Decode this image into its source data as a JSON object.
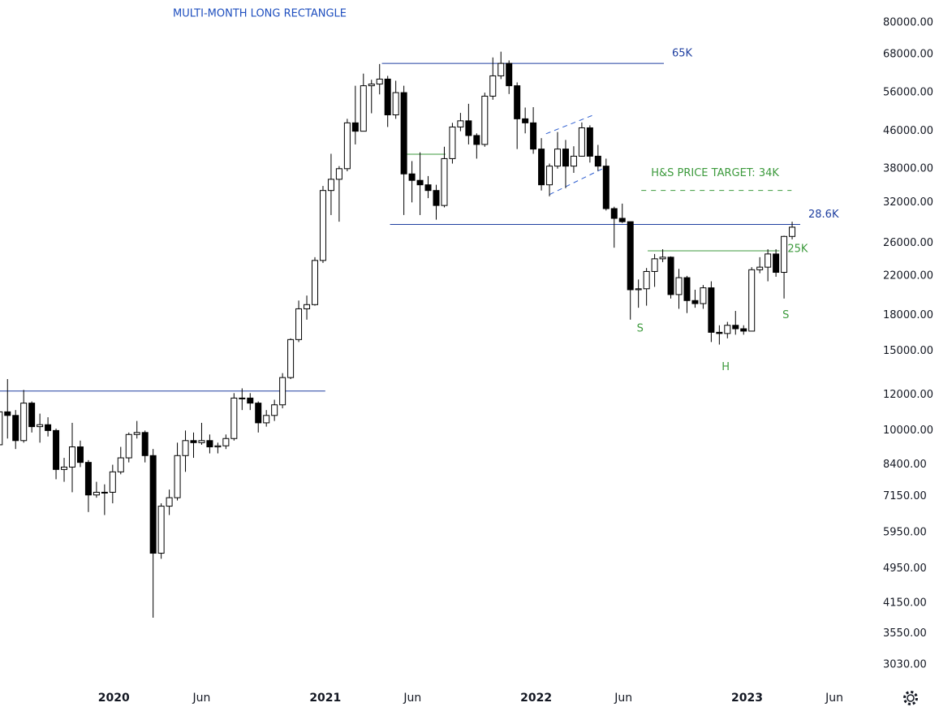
{
  "chart_data": {
    "type": "candlestick",
    "title": "MULTI-MONTH LONG RECTANGLE",
    "log_scale": true,
    "grid": false,
    "up_color": "#ffffff",
    "down_color": "#000000",
    "outline_color": "#000000",
    "x": [
      "2019-06-17",
      "2019-07-01",
      "2019-07-15",
      "2019-07-29",
      "2019-08-12",
      "2019-08-26",
      "2019-09-09",
      "2019-09-23",
      "2019-10-07",
      "2019-10-21",
      "2019-11-04",
      "2019-11-18",
      "2019-12-02",
      "2019-12-16",
      "2019-12-30",
      "2020-01-13",
      "2020-01-27",
      "2020-02-10",
      "2020-02-24",
      "2020-03-09",
      "2020-03-23",
      "2020-04-06",
      "2020-04-20",
      "2020-05-04",
      "2020-05-18",
      "2020-06-01",
      "2020-06-15",
      "2020-06-29",
      "2020-07-13",
      "2020-07-27",
      "2020-08-10",
      "2020-08-24",
      "2020-09-07",
      "2020-09-21",
      "2020-10-05",
      "2020-10-19",
      "2020-11-02",
      "2020-11-16",
      "2020-11-30",
      "2020-12-14",
      "2020-12-28",
      "2021-01-11",
      "2021-01-25",
      "2021-02-08",
      "2021-02-22",
      "2021-03-08",
      "2021-03-22",
      "2021-04-05",
      "2021-04-19",
      "2021-05-03",
      "2021-05-17",
      "2021-05-31",
      "2021-06-14",
      "2021-06-28",
      "2021-07-12",
      "2021-07-26",
      "2021-08-09",
      "2021-08-23",
      "2021-09-06",
      "2021-09-20",
      "2021-10-04",
      "2021-10-18",
      "2021-11-01",
      "2021-11-15",
      "2021-11-29",
      "2021-12-13",
      "2021-12-27",
      "2022-01-10",
      "2022-01-24",
      "2022-02-07",
      "2022-02-21",
      "2022-03-07",
      "2022-03-21",
      "2022-04-04",
      "2022-04-18",
      "2022-05-02",
      "2022-05-16",
      "2022-05-30",
      "2022-06-13",
      "2022-06-27",
      "2022-07-11",
      "2022-07-25",
      "2022-08-08",
      "2022-08-22",
      "2022-09-05",
      "2022-09-19",
      "2022-10-03",
      "2022-10-17",
      "2022-10-31",
      "2022-11-14",
      "2022-11-28",
      "2022-12-12",
      "2022-12-26",
      "2023-01-09",
      "2023-01-23",
      "2023-02-06",
      "2023-02-20",
      "2023-03-06",
      "2023-03-20"
    ],
    "open": [
      9300,
      11000,
      10800,
      9500,
      11500,
      10200,
      10300,
      10000,
      8200,
      8300,
      9200,
      8500,
      7200,
      7300,
      7300,
      8100,
      8700,
      9800,
      9900,
      8800,
      5350,
      6800,
      7100,
      8800,
      9500,
      9400,
      9500,
      9200,
      9250,
      9600,
      11800,
      11800,
      11500,
      10400,
      10800,
      11400,
      13100,
      15900,
      18600,
      19000,
      23800,
      34000,
      36000,
      38000,
      48000,
      46000,
      58000,
      58500,
      60000,
      50000,
      56000,
      37000,
      35800,
      35000,
      34000,
      31500,
      40000,
      47000,
      48500,
      45000,
      43000,
      55000,
      61000,
      65000,
      58000,
      49000,
      48000,
      42000,
      35000,
      38500,
      42000,
      38500,
      40500,
      46800,
      40500,
      38500,
      31000,
      29500,
      29000,
      20500,
      20600,
      22500,
      24000,
      24200,
      20000,
      21800,
      19400,
      19100,
      20700,
      16500,
      16400,
      17100,
      16800,
      16600,
      22700,
      23000,
      24600,
      22400,
      26900
    ],
    "high": [
      13800,
      13000,
      11100,
      12300,
      11600,
      10900,
      10700,
      10100,
      8700,
      10400,
      9500,
      8600,
      7700,
      7600,
      8400,
      9200,
      9900,
      10500,
      10000,
      9100,
      6900,
      7400,
      9400,
      10000,
      9900,
      10400,
      9800,
      9400,
      9800,
      12100,
      12400,
      12100,
      11600,
      11100,
      11700,
      13400,
      16000,
      19400,
      19900,
      24200,
      34800,
      41000,
      38500,
      49000,
      58000,
      61700,
      59800,
      64800,
      61000,
      59500,
      58000,
      39500,
      41300,
      36600,
      35000,
      42500,
      48000,
      50500,
      52900,
      45500,
      56000,
      67000,
      69000,
      66000,
      59000,
      51900,
      52000,
      44400,
      39000,
      45800,
      44000,
      42600,
      48100,
      47400,
      42900,
      40000,
      31300,
      31800,
      29000,
      21600,
      22900,
      24600,
      25200,
      24300,
      22800,
      22000,
      20500,
      21000,
      21400,
      17100,
      17400,
      18400,
      17100,
      23000,
      24200,
      25200,
      25200,
      27000,
      29000
    ],
    "low": [
      9000,
      9600,
      9100,
      9400,
      9900,
      9400,
      9700,
      7800,
      7700,
      7300,
      8300,
      6600,
      7100,
      6500,
      6900,
      8000,
      8500,
      9600,
      8500,
      3850,
      5200,
      6500,
      7000,
      8100,
      8700,
      9300,
      8900,
      8900,
      9100,
      9500,
      11100,
      11100,
      9900,
      10200,
      10500,
      11200,
      13000,
      15700,
      17600,
      18900,
      23500,
      30000,
      29000,
      37500,
      43000,
      46000,
      50400,
      55500,
      47000,
      49000,
      30000,
      32000,
      30000,
      32700,
      29300,
      31200,
      39000,
      46000,
      43000,
      40000,
      42500,
      54000,
      60000,
      55600,
      42000,
      45500,
      41000,
      34000,
      33000,
      38000,
      34400,
      37200,
      40400,
      39200,
      37600,
      30700,
      25400,
      28800,
      17600,
      18700,
      18900,
      20800,
      23600,
      19600,
      18600,
      18200,
      18700,
      18600,
      15700,
      15500,
      16000,
      16300,
      16300,
      16600,
      22300,
      21400,
      21900,
      19600,
      26500
    ],
    "close": [
      11000,
      10800,
      9500,
      11500,
      10200,
      10300,
      10000,
      8200,
      8300,
      9200,
      8500,
      7200,
      7300,
      7300,
      8100,
      8700,
      9800,
      9900,
      8800,
      5350,
      6800,
      7100,
      8800,
      9500,
      9400,
      9500,
      9200,
      9250,
      9600,
      11800,
      11800,
      11500,
      10400,
      10800,
      11400,
      13100,
      15900,
      18600,
      19000,
      23800,
      34000,
      36000,
      38000,
      48000,
      46000,
      58000,
      58500,
      60000,
      50000,
      56000,
      37000,
      35800,
      35000,
      34000,
      31500,
      40000,
      47000,
      48500,
      45000,
      43000,
      55000,
      61000,
      65000,
      58000,
      49000,
      48000,
      42000,
      35000,
      38500,
      42000,
      38500,
      40500,
      46800,
      40500,
      38500,
      31000,
      29500,
      29000,
      20500,
      20600,
      22500,
      24000,
      24200,
      20000,
      21800,
      19400,
      19100,
      20700,
      16500,
      16400,
      17100,
      16800,
      16600,
      22700,
      23000,
      24600,
      22400,
      26900,
      28200
    ],
    "xlim": [
      "2019-06-18",
      "2023-08-06"
    ],
    "xticks": [
      {
        "value": "2020-01-01",
        "label": "2020"
      },
      {
        "value": "2020-06-01",
        "label": "Jun"
      },
      {
        "value": "2021-01-01",
        "label": "2021"
      },
      {
        "value": "2021-06-01",
        "label": "Jun"
      },
      {
        "value": "2022-01-01",
        "label": "2022"
      },
      {
        "value": "2022-06-01",
        "label": "Jun"
      },
      {
        "value": "2023-01-01",
        "label": "2023"
      },
      {
        "value": "2023-06-01",
        "label": "Jun"
      }
    ],
    "ylim": [
      2720,
      89800
    ],
    "yticks": [
      {
        "value": 80000,
        "label": "80000.00"
      },
      {
        "value": 68000,
        "label": "68000.00"
      },
      {
        "value": 56000,
        "label": "56000.00"
      },
      {
        "value": 46000,
        "label": "46000.00"
      },
      {
        "value": 38000,
        "label": "38000.00"
      },
      {
        "value": 32000,
        "label": "32000.00"
      },
      {
        "value": 26000,
        "label": "26000.00"
      },
      {
        "value": 22000,
        "label": "22000.00"
      },
      {
        "value": 18000,
        "label": "18000.00"
      },
      {
        "value": 15000,
        "label": "15000.00"
      },
      {
        "value": 12000,
        "label": "12000.00"
      },
      {
        "value": 10000,
        "label": "10000.00"
      },
      {
        "value": 8400,
        "label": "8400.00"
      },
      {
        "value": 7150,
        "label": "7150.00"
      },
      {
        "value": 5950,
        "label": "5950.00"
      },
      {
        "value": 4950,
        "label": "4950.00"
      },
      {
        "value": 4150,
        "label": "4150.00"
      },
      {
        "value": 3550,
        "label": "3550.00"
      },
      {
        "value": 3030,
        "label": "3030.00"
      }
    ],
    "hlines": [
      {
        "value": 65000,
        "from": "2021-04-09",
        "to": "2022-08-10",
        "label": "65K",
        "color": "#1f3fa0"
      },
      {
        "value": 28600,
        "from": "2021-04-23",
        "to": "2023-04-03",
        "label": "28.6K",
        "color": "#1f3fa0"
      },
      {
        "value": 12230,
        "from": "2019-06-18",
        "to": "2021-01-01",
        "color": "#1f3fa0"
      },
      {
        "value": 25000,
        "from": "2022-07-13",
        "to": "2023-02-26",
        "label": "25K",
        "color": "#3c9a3c"
      },
      {
        "value": 34000,
        "from": "2022-07-02",
        "to": "2023-03-19",
        "label": "H&S PRICE TARGET: 34K",
        "color": "#3c9a3c",
        "dashed": true
      },
      {
        "value": 40900,
        "from": "2021-05-21",
        "to": "2021-07-28",
        "color": "#3c9a3c"
      }
    ],
    "trendlines": [
      {
        "points": [
          [
            "2022-01-18",
            45400
          ],
          [
            "2022-04-09",
            49900
          ]
        ],
        "color": "#2f5fd0",
        "dashed": true
      },
      {
        "points": [
          [
            "2022-01-24",
            33300
          ],
          [
            "2022-04-26",
            38000
          ]
        ],
        "color": "#2f5fd0",
        "dashed": true
      }
    ],
    "annotations": [
      {
        "text": "S",
        "x": "2022-06-30",
        "y": 16800
      },
      {
        "text": "H",
        "x": "2022-11-25",
        "y": 13800
      },
      {
        "text": "S",
        "x": "2023-03-09",
        "y": 18000
      }
    ],
    "annotation_color": "#3c9a3c",
    "title_color": "#1f4fbf"
  }
}
